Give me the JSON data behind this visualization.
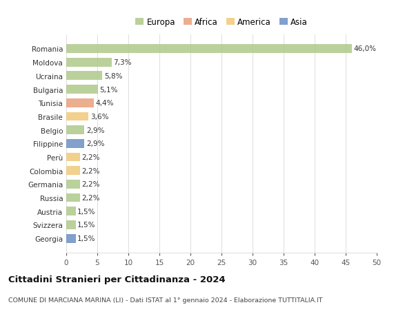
{
  "countries": [
    "Romania",
    "Moldova",
    "Ucraina",
    "Bulgaria",
    "Tunisia",
    "Brasile",
    "Belgio",
    "Filippine",
    "Perù",
    "Colombia",
    "Germania",
    "Russia",
    "Austria",
    "Svizzera",
    "Georgia"
  ],
  "values": [
    46.0,
    7.3,
    5.8,
    5.1,
    4.4,
    3.6,
    2.9,
    2.9,
    2.2,
    2.2,
    2.2,
    2.2,
    1.5,
    1.5,
    1.5
  ],
  "labels": [
    "46,0%",
    "7,3%",
    "5,8%",
    "5,1%",
    "4,4%",
    "3,6%",
    "2,9%",
    "2,9%",
    "2,2%",
    "2,2%",
    "2,2%",
    "2,2%",
    "1,5%",
    "1,5%",
    "1,5%"
  ],
  "continents": [
    "Europa",
    "Europa",
    "Europa",
    "Europa",
    "Africa",
    "America",
    "Europa",
    "Asia",
    "America",
    "America",
    "Europa",
    "Europa",
    "Europa",
    "Europa",
    "Asia"
  ],
  "continent_colors": {
    "Europa": "#aec98a",
    "Africa": "#e8a07a",
    "America": "#f0c97a",
    "Asia": "#6b8fc4"
  },
  "legend_order": [
    "Europa",
    "Africa",
    "America",
    "Asia"
  ],
  "xlim": [
    0,
    50
  ],
  "xticks": [
    0,
    5,
    10,
    15,
    20,
    25,
    30,
    35,
    40,
    45,
    50
  ],
  "title": "Cittadini Stranieri per Cittadinanza - 2024",
  "subtitle": "COMUNE DI MARCIANA MARINA (LI) - Dati ISTAT al 1° gennaio 2024 - Elaborazione TUTTITALIA.IT",
  "bg_color": "#ffffff",
  "grid_color": "#dddddd",
  "bar_height": 0.65,
  "label_fontsize": 7.5,
  "ytick_fontsize": 7.5,
  "xtick_fontsize": 7.5,
  "title_fontsize": 9.5,
  "subtitle_fontsize": 6.8
}
